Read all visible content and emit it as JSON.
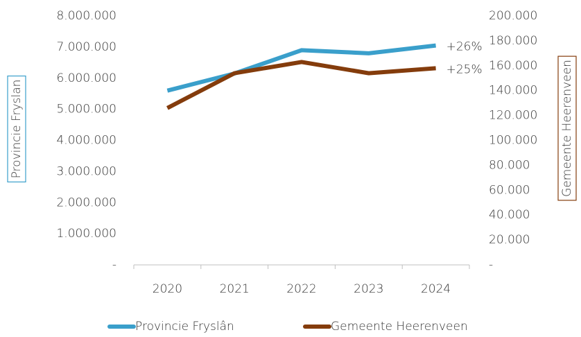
{
  "chart_data": {
    "type": "line",
    "categories": [
      "2020",
      "2021",
      "2022",
      "2023",
      "2024"
    ],
    "series": [
      {
        "name": "Provincie Fryslân",
        "color": "#3a9fcb",
        "values": [
          5600000,
          6150000,
          6900000,
          6800000,
          7050000
        ]
      },
      {
        "name": "Gemeente Heerenveen",
        "color": "#843c0c",
        "axis": "y2",
        "values": [
          126000,
          154000,
          163000,
          154000,
          158000
        ]
      }
    ],
    "ylabel": "Provincie Fryslan",
    "y2label": "Gemeente Heerenveen",
    "annotations": [
      "+26%",
      "+25%"
    ],
    "ylim": [
      0,
      8000000
    ],
    "yticks": [
      {
        "value": 0,
        "label": "-"
      },
      {
        "value": 1000000,
        "label": "1.000.000"
      },
      {
        "value": 2000000,
        "label": "2.000.000"
      },
      {
        "value": 3000000,
        "label": "3.000.000"
      },
      {
        "value": 4000000,
        "label": "4.000.000"
      },
      {
        "value": 5000000,
        "label": "5.000.000"
      },
      {
        "value": 6000000,
        "label": "6.000.000"
      },
      {
        "value": 7000000,
        "label": "7.000.000"
      },
      {
        "value": 8000000,
        "label": "8.000.000"
      }
    ],
    "y2lim": [
      0,
      200000
    ],
    "y2ticks": [
      {
        "value": 0,
        "label": "-"
      },
      {
        "value": 20000,
        "label": "20.000"
      },
      {
        "value": 40000,
        "label": "40.000"
      },
      {
        "value": 60000,
        "label": "60.000"
      },
      {
        "value": 80000,
        "label": "80.000"
      },
      {
        "value": 100000,
        "label": "100.000"
      },
      {
        "value": 120000,
        "label": "120.000"
      },
      {
        "value": 140000,
        "label": "140.000"
      },
      {
        "value": 160000,
        "label": "160.000"
      },
      {
        "value": 180000,
        "label": "180.000"
      },
      {
        "value": 200000,
        "label": "200.000"
      }
    ],
    "grid": false,
    "legend": "bottom"
  }
}
